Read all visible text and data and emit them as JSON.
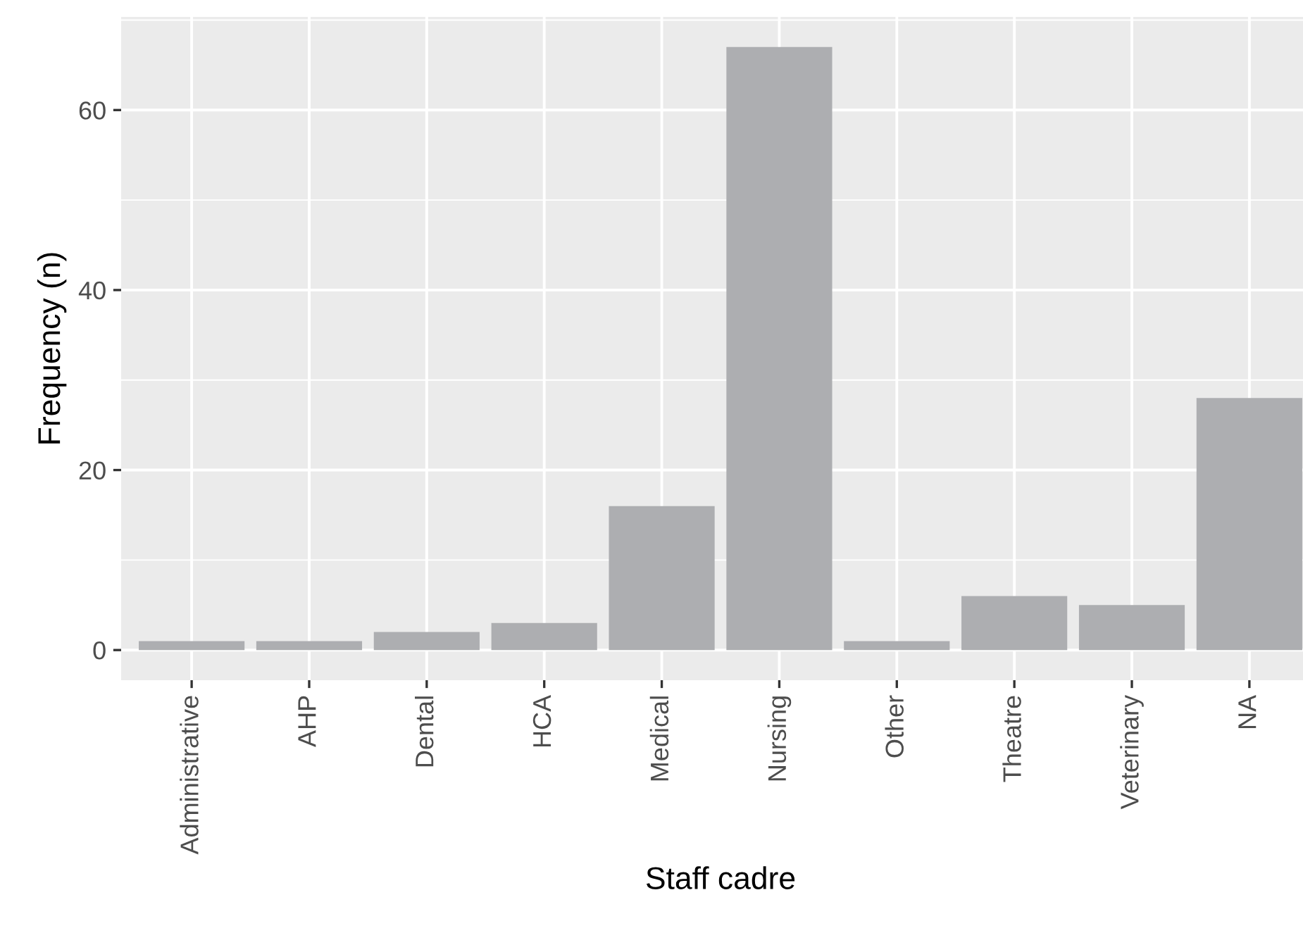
{
  "chart_data": {
    "type": "bar",
    "xlabel": "Staff cadre",
    "ylabel": "Frequency (n)",
    "categories": [
      "Administrative",
      "AHP",
      "Dental",
      "HCA",
      "Medical",
      "Nursing",
      "Other",
      "Theatre",
      "Veterinary",
      "NA"
    ],
    "values": [
      1,
      1,
      2,
      3,
      16,
      67,
      1,
      6,
      5,
      28
    ],
    "color": "#adaeb1",
    "ylim": [
      -3.35,
      70.35
    ],
    "yticks": [
      0,
      20,
      40,
      60
    ],
    "grid": true
  }
}
